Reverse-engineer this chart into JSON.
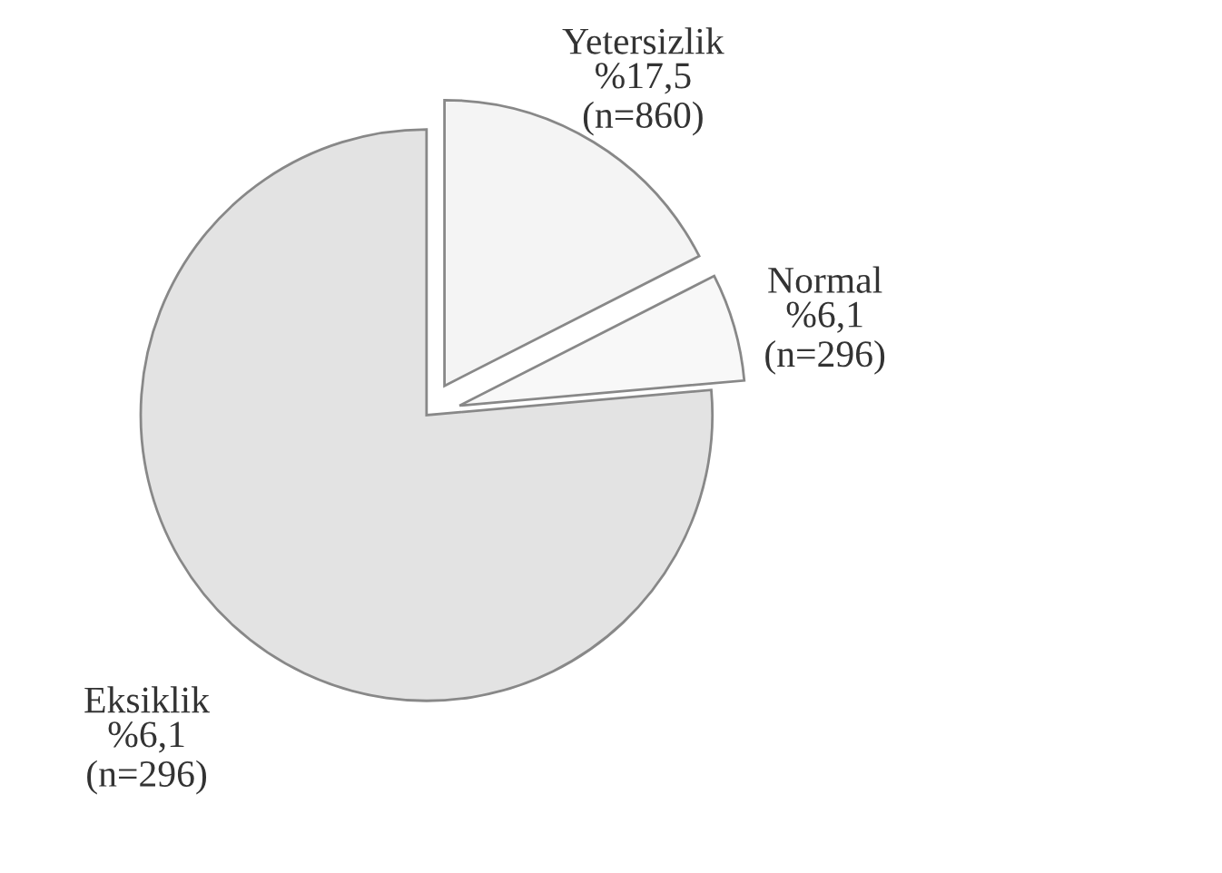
{
  "chart_data": {
    "type": "pie",
    "categories": [
      "Yetersizlik",
      "Normal",
      "Eksiklik"
    ],
    "values": [
      17.5,
      6.1,
      76.4
    ],
    "colors": [
      "#f4f4f4",
      "#f8f8f8",
      "#e3e3e3"
    ],
    "annotations": [
      "%17,5\n(n=860)",
      "%6,1\n(n=296)",
      "%6,1\n(n=296)"
    ]
  }
}
